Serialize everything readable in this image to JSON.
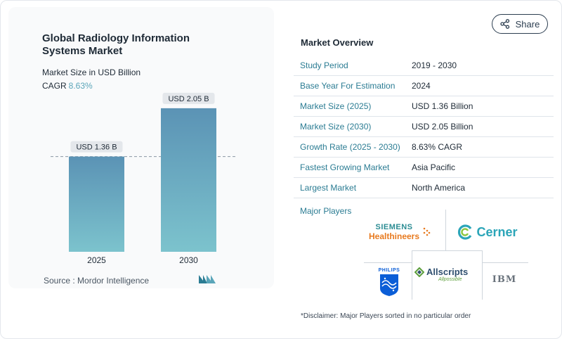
{
  "chart_data": {
    "type": "bar",
    "title": "Global Radiology Information Systems Market",
    "subtitle": "Market Size in USD Billion",
    "cagr_label": "CAGR",
    "cagr_value": "8.63%",
    "categories": [
      "2025",
      "2030"
    ],
    "values": [
      1.36,
      2.05
    ],
    "data_labels": [
      "USD 1.36 B",
      "USD 2.05 B"
    ],
    "ylim": [
      0,
      2.3
    ],
    "grid": false,
    "reference_line": "dashed at 2025 value"
  },
  "source_text": "Source :  Mordor Intelligence",
  "share_label": "Share",
  "overview": {
    "title": "Market Overview",
    "rows": [
      {
        "label": "Study Period",
        "value": "2019 - 2030"
      },
      {
        "label": "Base Year For Estimation",
        "value": "2024"
      },
      {
        "label": "Market Size (2025)",
        "value": "USD 1.36 Billion"
      },
      {
        "label": "Market Size (2030)",
        "value": "USD 2.05 Billion"
      },
      {
        "label": "Growth Rate (2025 - 2030)",
        "value": "8.63% CAGR"
      },
      {
        "label": "Fastest Growing Market",
        "value": "Asia Pacific"
      },
      {
        "label": "Largest Market",
        "value": "North America"
      }
    ]
  },
  "players": {
    "label": "Major Players",
    "siemens_line1": "SIEMENS",
    "siemens_line2": "Healthineers",
    "cerner": "Cerner",
    "philips": "PHILIPS",
    "allscripts": "Allscripts",
    "allscripts_tag": "Allpossible",
    "ibm": "IBM"
  },
  "disclaimer": "*Disclaimer: Major Players sorted in no particular order",
  "colors": {
    "bar_top": "#5b93b5",
    "bar_bottom": "#7cc3cd",
    "accent": "#2b7c93",
    "label_box": "#e4e7eb"
  }
}
